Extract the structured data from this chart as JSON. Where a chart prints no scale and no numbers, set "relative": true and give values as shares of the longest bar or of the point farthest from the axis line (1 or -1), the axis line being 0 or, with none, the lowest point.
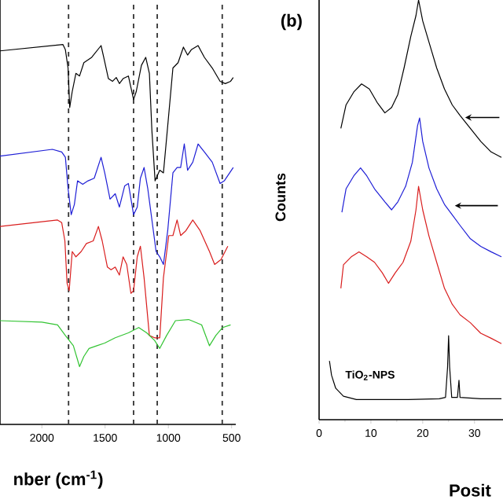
{
  "chart_data": [
    {
      "type": "line",
      "relative": true,
      "xlabel": "nber (cm$^{-1}$)",
      "xlim": [
        2331,
        467
      ],
      "xticks": [
        2000,
        1500,
        1000,
        500
      ],
      "tick_labels": "x",
      "series": [
        {
          "color": "#000000",
          "x": [
            2331,
            1834,
            1814,
            1793,
            1780,
            1760,
            1731,
            1702,
            1668,
            1606,
            1532,
            1511,
            1474,
            1441,
            1412,
            1387,
            1358,
            1316,
            1275,
            1254,
            1213,
            1179,
            1150,
            1130,
            1105,
            1068,
            1039,
            1005,
            964,
            923,
            881,
            848,
            819,
            765,
            715,
            653,
            591,
            550,
            508,
            487
          ],
          "values": [
            0.983,
            1.0,
            0.986,
            0.938,
            0.834,
            0.876,
            0.924,
            0.917,
            0.952,
            0.966,
            0.997,
            0.966,
            0.91,
            0.903,
            0.913,
            0.897,
            0.91,
            0.917,
            0.855,
            0.876,
            0.945,
            0.966,
            0.924,
            0.772,
            0.641,
            0.669,
            0.662,
            0.786,
            0.938,
            0.952,
            0.993,
            0.972,
            0.986,
            0.997,
            0.966,
            0.938,
            0.903,
            0.897,
            0.903,
            0.913
          ]
        },
        {
          "color": "#1f1fd6",
          "x": [
            2331,
            1917,
            1843,
            1814,
            1793,
            1768,
            1743,
            1718,
            1677,
            1635,
            1586,
            1532,
            1503,
            1461,
            1420,
            1387,
            1345,
            1316,
            1275,
            1246,
            1221,
            1192,
            1163,
            1130,
            1097,
            1068,
            1039,
            1005,
            964,
            931,
            903,
            874,
            848,
            807,
            765,
            715,
            653,
            591,
            558,
            487
          ],
          "values": [
            0.706,
            0.724,
            0.717,
            0.703,
            0.621,
            0.552,
            0.579,
            0.641,
            0.632,
            0.641,
            0.648,
            0.703,
            0.662,
            0.593,
            0.607,
            0.572,
            0.628,
            0.634,
            0.552,
            0.572,
            0.648,
            0.676,
            0.621,
            0.538,
            0.455,
            0.441,
            0.421,
            0.51,
            0.662,
            0.676,
            0.676,
            0.738,
            0.669,
            0.69,
            0.738,
            0.717,
            0.69,
            0.634,
            0.641,
            0.676
          ]
        },
        {
          "color": "#d91e1e",
          "x": [
            2331,
            1876,
            1843,
            1818,
            1801,
            1784,
            1760,
            1731,
            1689,
            1648,
            1594,
            1553,
            1523,
            1482,
            1453,
            1420,
            1387,
            1358,
            1329,
            1296,
            1275,
            1246,
            1221,
            1192,
            1150,
            1109,
            1068,
            1039,
            997,
            964,
            931,
            903,
            861,
            807,
            749,
            675,
            634,
            584,
            530
          ],
          "values": [
            0.521,
            0.538,
            0.531,
            0.483,
            0.372,
            0.352,
            0.455,
            0.441,
            0.455,
            0.476,
            0.483,
            0.521,
            0.483,
            0.414,
            0.407,
            0.414,
            0.393,
            0.441,
            0.421,
            0.345,
            0.352,
            0.441,
            0.469,
            0.386,
            0.234,
            0.228,
            0.228,
            0.386,
            0.497,
            0.497,
            0.538,
            0.497,
            0.51,
            0.538,
            0.51,
            0.455,
            0.421,
            0.434,
            0.469
          ]
        },
        {
          "color": "#33c433",
          "x": [
            2331,
            2000,
            1876,
            1814,
            1751,
            1702,
            1668,
            1627,
            1565,
            1503,
            1420,
            1316,
            1234,
            1171,
            1109,
            1068,
            1014,
            944,
            840,
            737,
            675,
            625,
            571,
            508
          ],
          "values": [
            0.273,
            0.269,
            0.262,
            0.234,
            0.207,
            0.152,
            0.179,
            0.2,
            0.207,
            0.214,
            0.228,
            0.241,
            0.255,
            0.241,
            0.221,
            0.2,
            0.234,
            0.273,
            0.276,
            0.262,
            0.207,
            0.234,
            0.255,
            0.262
          ]
        }
      ],
      "ref_lines": [
        {
          "axis": "x",
          "value": 1789,
          "color": "#333333",
          "line_style": "dashed"
        },
        {
          "axis": "x",
          "value": 1275,
          "color": "#333333",
          "line_style": "dashed"
        },
        {
          "axis": "x",
          "value": 1088,
          "color": "#333333",
          "line_style": "dashed"
        },
        {
          "axis": "x",
          "value": 574,
          "color": "#333333",
          "line_style": "dashed"
        }
      ]
    },
    {
      "type": "line",
      "relative": true,
      "title": "(b)",
      "xlabel": "Posit",
      "ylabel": "Counts",
      "xlim": [
        0,
        35.5
      ],
      "xticks": [
        0,
        10,
        20,
        30
      ],
      "tick_labels": "x",
      "series": [
        {
          "color": "#000000",
          "x": [
            4.2,
            5.2,
            6.7,
            8.2,
            9.7,
            11.2,
            12.7,
            14.0,
            15.2,
            16.4,
            17.7,
            18.7,
            19.2,
            20.0,
            21.2,
            22.7,
            24.2,
            25.7,
            27.2,
            29.2,
            31.2,
            33.2,
            35.2
          ],
          "values": [
            0.694,
            0.75,
            0.781,
            0.8,
            0.788,
            0.756,
            0.731,
            0.744,
            0.775,
            0.838,
            0.913,
            0.963,
            1.0,
            0.95,
            0.9,
            0.838,
            0.788,
            0.75,
            0.725,
            0.694,
            0.663,
            0.638,
            0.625
          ]
        },
        {
          "color": "#1f1fd6",
          "x": [
            4.4,
            5.2,
            6.7,
            8.0,
            9.2,
            10.7,
            12.7,
            14.0,
            15.2,
            16.7,
            18.0,
            19.0,
            19.4,
            20.0,
            21.2,
            22.7,
            24.2,
            25.7,
            27.2,
            29.2,
            31.2,
            33.2,
            35.2
          ],
          "values": [
            0.494,
            0.55,
            0.581,
            0.6,
            0.581,
            0.55,
            0.519,
            0.5,
            0.519,
            0.556,
            0.613,
            0.7,
            0.719,
            0.663,
            0.6,
            0.55,
            0.513,
            0.488,
            0.463,
            0.431,
            0.413,
            0.4,
            0.388
          ]
        },
        {
          "color": "#d91e1e",
          "x": [
            4.2,
            4.7,
            6.2,
            7.7,
            9.2,
            10.7,
            12.2,
            13.4,
            14.7,
            16.2,
            17.7,
            18.7,
            19.2,
            20.0,
            21.2,
            22.7,
            24.2,
            25.7,
            27.2,
            29.2,
            31.2,
            33.2,
            35.2
          ],
          "values": [
            0.313,
            0.369,
            0.388,
            0.4,
            0.388,
            0.375,
            0.35,
            0.325,
            0.35,
            0.375,
            0.425,
            0.5,
            0.556,
            0.5,
            0.438,
            0.375,
            0.313,
            0.275,
            0.25,
            0.231,
            0.206,
            0.194,
            0.181
          ]
        },
        {
          "name": "TiO$_{2}$-NPS",
          "color": "#000000",
          "x": [
            2.0,
            2.4,
            3.2,
            4.7,
            7.2,
            12.2,
            17.2,
            23.2,
            24.4,
            24.8,
            25.0,
            25.2,
            25.6,
            26.7,
            27.0,
            27.2,
            31.2,
            35.2
          ],
          "values": [
            0.14,
            0.106,
            0.075,
            0.056,
            0.048,
            0.048,
            0.048,
            0.05,
            0.053,
            0.125,
            0.2,
            0.125,
            0.053,
            0.053,
            0.094,
            0.053,
            0.05,
            0.05
          ]
        }
      ]
    }
  ]
}
